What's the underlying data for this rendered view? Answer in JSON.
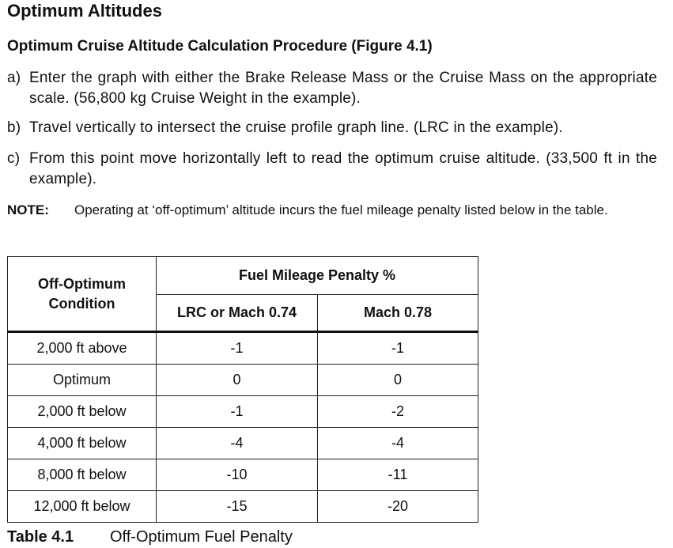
{
  "section_title": "Optimum Altitudes",
  "subsection_title": "Optimum Cruise Altitude Calculation Procedure (Figure 4.1)",
  "steps": [
    {
      "marker": "a)",
      "text": "Enter the graph with either the Brake Release Mass or the Cruise Mass on the appropriate scale. (56,800 kg Cruise Weight in the example)."
    },
    {
      "marker": "b)",
      "text": "Travel vertically to intersect the cruise profile graph line. (LRC in the example)."
    },
    {
      "marker": "c)",
      "text": "From this point move horizontally left to read the optimum cruise altitude. (33,500 ft in the example)."
    }
  ],
  "note": {
    "label": "NOTE:",
    "text": "Operating at ‘off-optimum’ altitude incurs the fuel mileage penalty listed below in the table."
  },
  "table": {
    "condition_header": [
      "Off-Optimum",
      "Condition"
    ],
    "group_header": "Fuel Mileage Penalty %",
    "column_headers": [
      "LRC or Mach 0.74",
      "Mach 0.78"
    ],
    "rows": [
      {
        "condition": "2,000 ft above",
        "lrc": "-1",
        "mach078": "-1"
      },
      {
        "condition": "Optimum",
        "lrc": "0",
        "mach078": "0"
      },
      {
        "condition": "2,000 ft below",
        "lrc": "-1",
        "mach078": "-2"
      },
      {
        "condition": "4,000 ft below",
        "lrc": "-4",
        "mach078": "-4"
      },
      {
        "condition": "8,000 ft below",
        "lrc": "-10",
        "mach078": "-11"
      },
      {
        "condition": "12,000 ft below",
        "lrc": "-15",
        "mach078": "-20"
      }
    ]
  },
  "caption": {
    "label": "Table 4.1",
    "text": "Off-Optimum Fuel Penalty"
  }
}
